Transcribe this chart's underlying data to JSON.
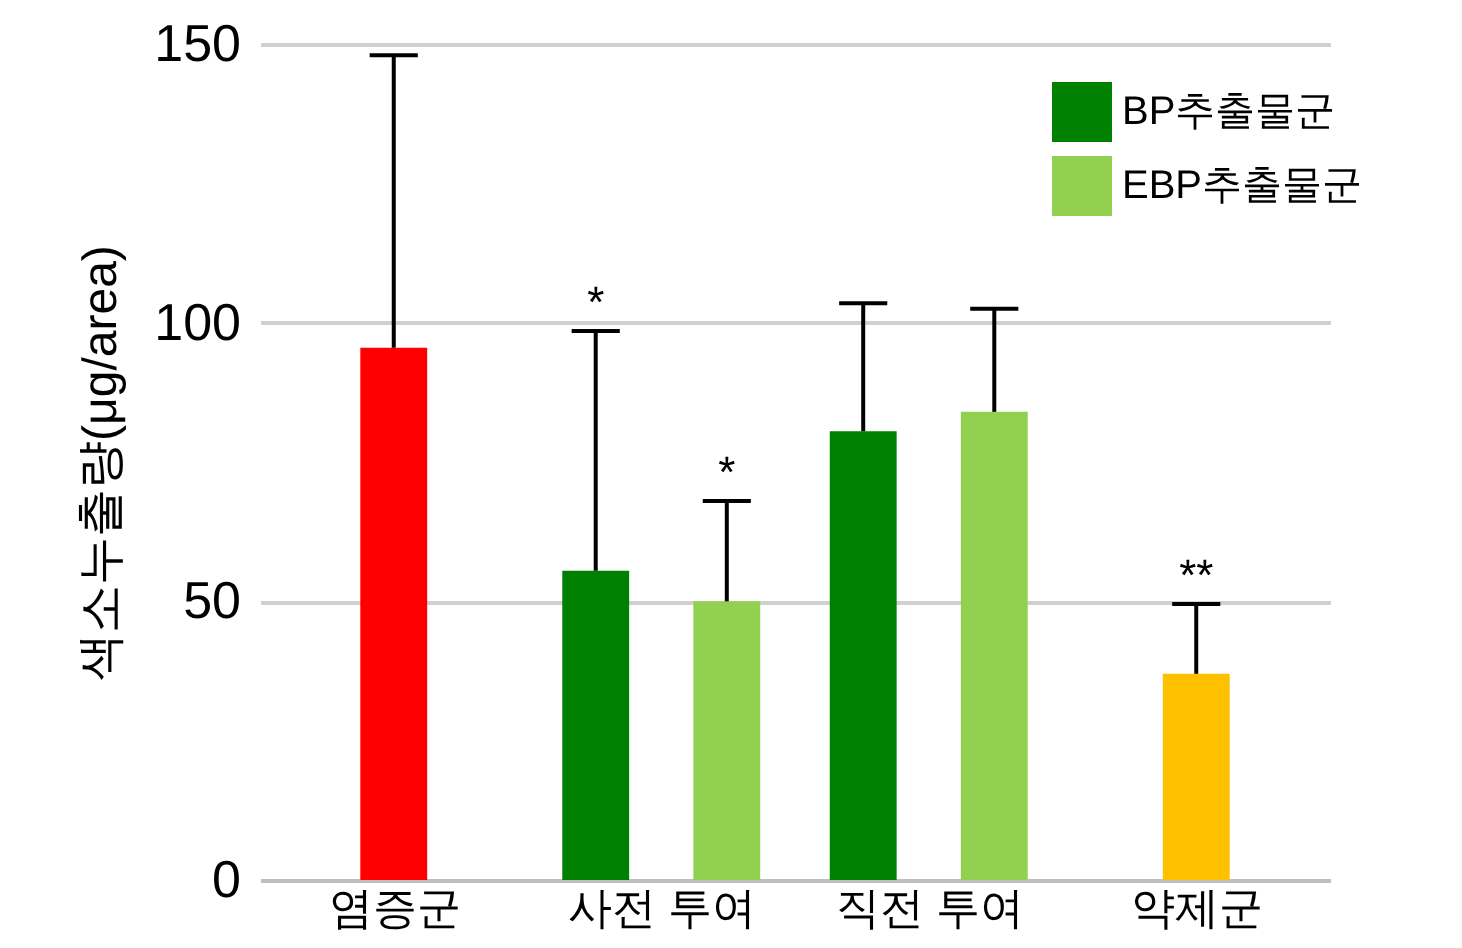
{
  "chart_data": {
    "type": "bar",
    "ylabel": "색소누출량(μg/area)",
    "categories": [
      "염증군",
      "사전 투여",
      "직전 투여",
      "약제군"
    ],
    "series": [
      {
        "color": "#ff0000",
        "values": [
          95.5,
          null,
          null,
          null
        ],
        "errors": [
          [
            95.5,
            148
          ],
          null,
          null,
          null
        ]
      },
      {
        "name": "BP추출물군",
        "color": "#008000",
        "values": [
          null,
          55.5,
          80.5,
          null
        ],
        "errors": [
          null,
          [
            55.5,
            98.5
          ],
          [
            80.5,
            103.5
          ],
          null
        ]
      },
      {
        "name": "EBP추출물군",
        "color": "#92d050",
        "values": [
          null,
          50,
          84,
          null
        ],
        "errors": [
          null,
          [
            50,
            68
          ],
          [
            84,
            102.5
          ],
          null
        ]
      },
      {
        "color": "#ffc000",
        "values": [
          null,
          null,
          null,
          37
        ],
        "errors": [
          null,
          null,
          null,
          [
            37,
            49.5
          ]
        ]
      }
    ],
    "ylim": [
      0,
      150
    ],
    "yticks": [
      0,
      50,
      100,
      150
    ],
    "grid": "y",
    "legend": "top right",
    "annotations": [
      "*",
      "*",
      {
        "text": "**",
        "x": "약제군",
        "y": 49.5
      }
    ]
  }
}
